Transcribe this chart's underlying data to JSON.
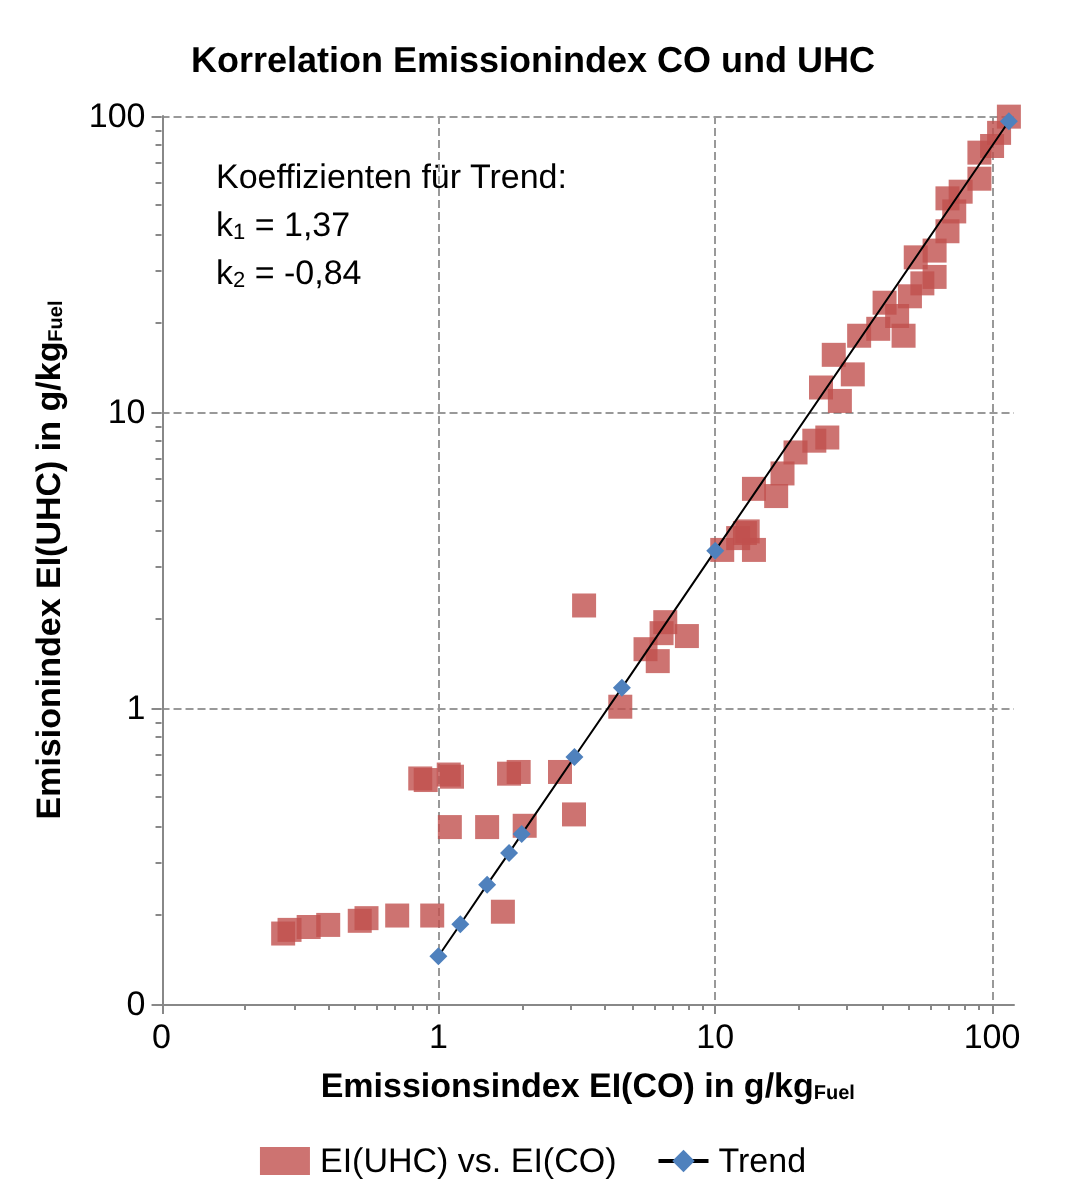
{
  "chart_data": {
    "type": "scatter",
    "title": "Korrelation Emissionindex CO und UHC",
    "xlabel": "Emissionsindex EI(CO) in g/kg$_{Fuel}$",
    "ylabel": "Emisionindex EI(UHC) in g/kg$_{Fuel}$",
    "log": "xy",
    "xlim": [
      0.1,
      120
    ],
    "ylim": [
      0.1,
      100
    ],
    "xticks": [
      {
        "value": 0.1,
        "label": "0"
      },
      1,
      10,
      100
    ],
    "yticks": [
      {
        "value": 0.1,
        "label": "0"
      },
      1,
      10,
      100
    ],
    "grid": true,
    "legend": "bottom",
    "annotations": [
      "Koeffizienten für Trend:",
      "k$_{1}$ = 1,37",
      "k$_{2}$ = -0,84"
    ],
    "series": [
      {
        "name": "EI(UHC) vs. EI(CO)",
        "marker": "square",
        "color": "#c0504d",
        "x": [
          0.275,
          0.29,
          0.34,
          0.4,
          0.52,
          0.55,
          0.71,
          0.95,
          1.71,
          0.86,
          0.9,
          1.09,
          1.12,
          1.8,
          1.95,
          2.75,
          1.1,
          1.5,
          2.05,
          3.09,
          3.36,
          4.54,
          5.6,
          6.2,
          6.4,
          6.6,
          7.9,
          10.6,
          12.8,
          13.8,
          13.8,
          16.6,
          17.5,
          19.5,
          22.8,
          25.4,
          24.1,
          28.2,
          26.8,
          31.4,
          33.1,
          38.8,
          40.9,
          45.4,
          47.9,
          50.5,
          56,
          62,
          53,
          62,
          69,
          73,
          69,
          77,
          90,
          90,
          100,
          106,
          115,
          12.1,
          13.1
        ],
        "values": [
          0.173,
          0.178,
          0.182,
          0.185,
          0.191,
          0.195,
          0.199,
          0.199,
          0.205,
          0.578,
          0.571,
          0.596,
          0.586,
          0.6,
          0.608,
          0.608,
          0.396,
          0.396,
          0.4,
          0.437,
          2.22,
          1.01,
          1.58,
          1.44,
          1.79,
          1.95,
          1.75,
          3.42,
          3.9,
          3.42,
          5.5,
          5.2,
          6.2,
          7.3,
          8,
          8.2,
          12.1,
          10.9,
          15.6,
          13.4,
          18.1,
          19.1,
          23.4,
          21.1,
          18.1,
          24.6,
          27.2,
          28.6,
          33.3,
          35.1,
          40.8,
          47.6,
          52.7,
          55.5,
          61.4,
          75.2,
          79.2,
          87.7,
          99.5,
          3.75,
          3.95
        ]
      },
      {
        "name": "Trend",
        "type": "line",
        "marker": "diamond",
        "color": "#4f81bd",
        "x": [
          1,
          1.2,
          1.5,
          1.8,
          2,
          3.1,
          4.6,
          10,
          115
        ],
        "values": [
          0.145,
          0.186,
          0.253,
          0.324,
          0.375,
          0.683,
          1.17,
          3.4,
          96
        ]
      }
    ]
  }
}
